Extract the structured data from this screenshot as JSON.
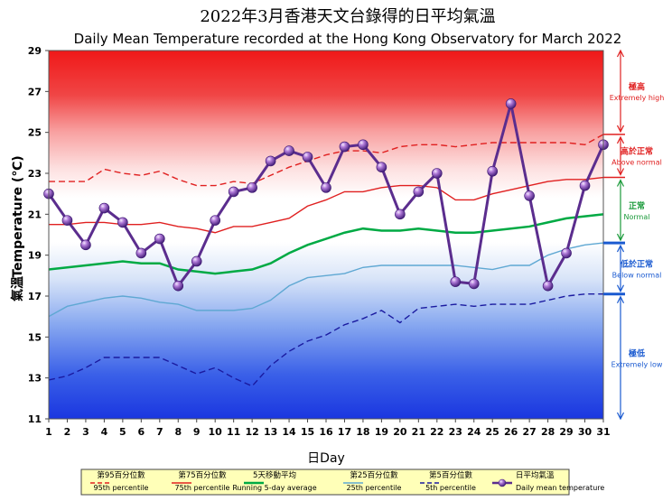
{
  "chart_data": {
    "type": "line",
    "title_zh": "2022年3月香港天文台錄得的日平均氣溫",
    "title": "Daily Mean Temperature recorded at the Hong Kong Observatory for March 2022",
    "xlabel": "日Day",
    "ylabel_zh": "氣溫",
    "ylabel": "Temperature (℃)",
    "xlim": [
      1,
      31
    ],
    "ylim": [
      11,
      29
    ],
    "x": [
      1,
      2,
      3,
      4,
      5,
      6,
      7,
      8,
      9,
      10,
      11,
      12,
      13,
      14,
      15,
      16,
      17,
      18,
      19,
      20,
      21,
      22,
      23,
      24,
      25,
      26,
      27,
      28,
      29,
      30,
      31
    ],
    "x_ticks": [
      "1",
      "2",
      "3",
      "4",
      "5",
      "6",
      "7",
      "8",
      "9",
      "10",
      "11",
      "12",
      "13",
      "14",
      "15",
      "16",
      "17",
      "18",
      "19",
      "20",
      "21",
      "22",
      "23",
      "24",
      "25",
      "26",
      "27",
      "28",
      "29",
      "30",
      "31"
    ],
    "y_ticks": [
      "11",
      "13",
      "15",
      "17",
      "19",
      "21",
      "23",
      "25",
      "27",
      "29"
    ],
    "y_tick_values": [
      11,
      13,
      15,
      17,
      19,
      21,
      23,
      25,
      27,
      29
    ],
    "series": [
      {
        "key": "p95",
        "name_zh": "第95百分位數",
        "name": "95th percentile",
        "color": "#e02020",
        "style": "dashed",
        "values": [
          22.6,
          22.6,
          22.6,
          23.2,
          23.0,
          22.9,
          23.1,
          22.7,
          22.4,
          22.4,
          22.6,
          22.5,
          22.9,
          23.3,
          23.6,
          23.9,
          24.1,
          24.1,
          24.0,
          24.3,
          24.4,
          24.4,
          24.3,
          24.4,
          24.5,
          24.5,
          24.5,
          24.5,
          24.5,
          24.4,
          24.9
        ]
      },
      {
        "key": "p75",
        "name_zh": "第75百分位數",
        "name": "75th percentile",
        "color": "#e02020",
        "style": "solid",
        "values": [
          20.5,
          20.5,
          20.6,
          20.6,
          20.5,
          20.5,
          20.6,
          20.4,
          20.3,
          20.1,
          20.4,
          20.4,
          20.6,
          20.8,
          21.4,
          21.7,
          22.1,
          22.1,
          22.3,
          22.4,
          22.4,
          22.3,
          21.7,
          21.7,
          22.0,
          22.2,
          22.4,
          22.6,
          22.7,
          22.7,
          22.8
        ]
      },
      {
        "key": "running",
        "name_zh": "5天移動平均",
        "name": "Running 5-day average",
        "color": "#00aa44",
        "style": "solid",
        "values": [
          18.3,
          18.4,
          18.5,
          18.6,
          18.7,
          18.6,
          18.6,
          18.3,
          18.2,
          18.1,
          18.2,
          18.3,
          18.6,
          19.1,
          19.5,
          19.8,
          20.1,
          20.3,
          20.2,
          20.2,
          20.3,
          20.2,
          20.1,
          20.1,
          20.2,
          20.3,
          20.4,
          20.6,
          20.8,
          20.9,
          21.0
        ]
      },
      {
        "key": "p25",
        "name_zh": "第25百分位數",
        "name": "25th percentile",
        "color": "#5fa8d3",
        "style": "solid",
        "values": [
          16.0,
          16.5,
          16.7,
          16.9,
          17.0,
          16.9,
          16.7,
          16.6,
          16.3,
          16.3,
          16.3,
          16.4,
          16.8,
          17.5,
          17.9,
          18.0,
          18.1,
          18.4,
          18.5,
          18.5,
          18.5,
          18.5,
          18.5,
          18.4,
          18.3,
          18.5,
          18.5,
          19.0,
          19.3,
          19.5,
          19.6
        ]
      },
      {
        "key": "p5",
        "name_zh": "第5百分位數",
        "name": "5th percentile",
        "color": "#1a1aa0",
        "style": "dashed",
        "values": [
          12.9,
          13.1,
          13.5,
          14.0,
          14.0,
          14.0,
          14.0,
          13.6,
          13.2,
          13.5,
          13.0,
          12.6,
          13.6,
          14.3,
          14.8,
          15.1,
          15.6,
          15.9,
          16.3,
          15.7,
          16.4,
          16.5,
          16.6,
          16.5,
          16.6,
          16.6,
          16.6,
          16.8,
          17.0,
          17.1,
          17.1
        ]
      },
      {
        "key": "daily",
        "name_zh": "日平均氣溫",
        "name": "Daily mean temperature",
        "color": "#5b2d8e",
        "style": "marker",
        "values": [
          22.0,
          20.7,
          19.5,
          21.3,
          20.6,
          19.1,
          19.8,
          17.5,
          18.7,
          20.7,
          22.1,
          22.3,
          23.6,
          24.1,
          23.8,
          22.3,
          24.3,
          24.4,
          23.3,
          21.0,
          22.1,
          23.0,
          17.7,
          17.6,
          23.1,
          26.4,
          21.9,
          17.5,
          19.1,
          22.4,
          24.4
        ]
      }
    ],
    "zones": [
      {
        "key": "extremely_high",
        "zh": "極高",
        "en": "Extremely high",
        "color": "#e02020",
        "from": 24.9,
        "to": 29
      },
      {
        "key": "above_normal",
        "zh": "高於正常",
        "en": "Above normal",
        "color": "#e02020",
        "from": 22.8,
        "to": 24.9
      },
      {
        "key": "normal",
        "zh": "正常",
        "en": "Normal",
        "color": "#1a9a3a",
        "from": 19.6,
        "to": 22.8
      },
      {
        "key": "below_normal",
        "zh": "低於正常",
        "en": "Below normal",
        "color": "#1a5ad0",
        "from": 17.1,
        "to": 19.6
      },
      {
        "key": "extremely_low",
        "zh": "極低",
        "en": "Extremely low",
        "color": "#1a5ad0",
        "from": 11,
        "to": 17.1
      }
    ]
  }
}
